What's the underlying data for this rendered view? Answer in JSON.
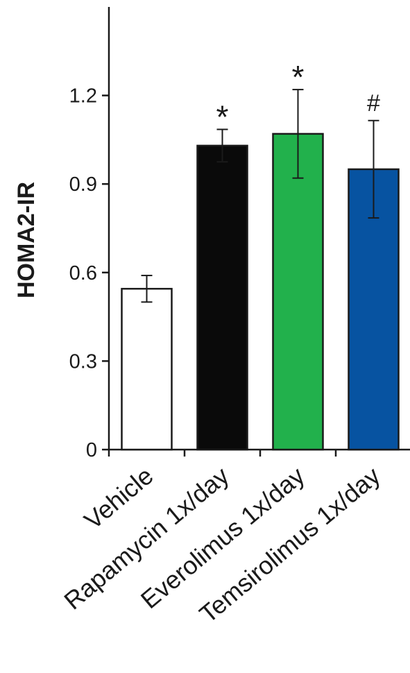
{
  "chart_data": {
    "type": "bar",
    "title": "",
    "xlabel": "",
    "ylabel": "HOMA2-IR",
    "ylim": [
      0,
      1.5
    ],
    "yticks": [
      0,
      0.3,
      0.6,
      0.9,
      1.2
    ],
    "ytick_labels": [
      "0",
      "0.3",
      "0.6",
      "0.9",
      "1.2"
    ],
    "grid": false,
    "legend": "none",
    "categories": [
      "Vehicle",
      "Rapamycin 1x/day",
      "Everolimus 1x/day",
      "Temsirolimus 1x/day"
    ],
    "values": [
      0.545,
      1.03,
      1.07,
      0.95
    ],
    "error": [
      0.045,
      0.055,
      0.15,
      0.165
    ],
    "colors": [
      "#ffffff",
      "#0a0a0a",
      "#22b14c",
      "#0753a1"
    ],
    "significance": [
      "",
      "*",
      "*",
      "#"
    ]
  }
}
